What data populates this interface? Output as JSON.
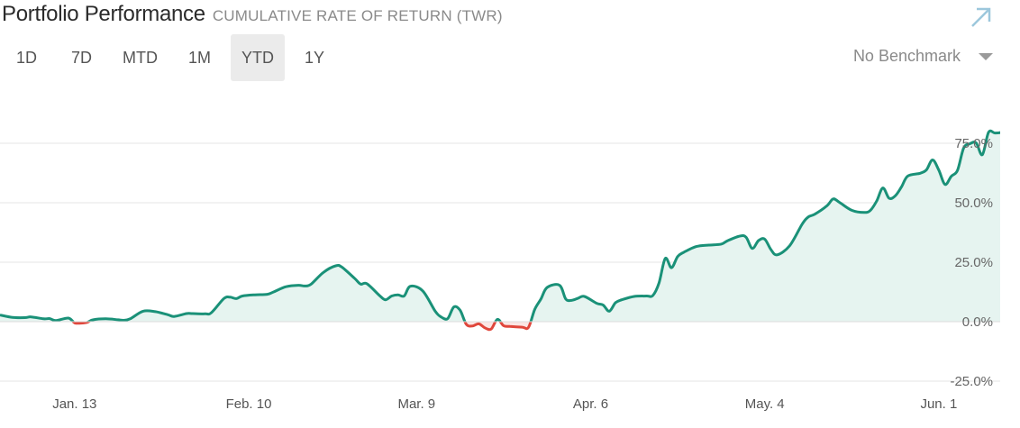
{
  "header": {
    "title": "Portfolio Performance",
    "subtitle": "CUMULATIVE RATE OF RETURN (TWR)"
  },
  "tabs": [
    {
      "label": "1D",
      "active": false
    },
    {
      "label": "7D",
      "active": false
    },
    {
      "label": "MTD",
      "active": false
    },
    {
      "label": "1M",
      "active": false
    },
    {
      "label": "YTD",
      "active": true
    },
    {
      "label": "1Y",
      "active": false
    }
  ],
  "benchmark": {
    "selected": "No Benchmark"
  },
  "icons": {
    "expand": "expand-arrow-icon",
    "dropdown": "chevron-down-icon"
  },
  "colors": {
    "positive": "#1a9178",
    "negative": "#e0473c",
    "fill": "#e6f4f0",
    "negative_fill": "#fbe6e4",
    "grid": "#e4e4e4"
  },
  "chart_data": {
    "type": "area",
    "title": "",
    "xlabel": "",
    "ylabel": "",
    "y_unit": "%",
    "ylim": [
      -25,
      85
    ],
    "y_ticks": [
      {
        "value": 75,
        "label": "75.0%"
      },
      {
        "value": 50,
        "label": "50.0%"
      },
      {
        "value": 25,
        "label": "25.0%"
      },
      {
        "value": 0,
        "label": "0.0%"
      },
      {
        "value": -25,
        "label": "-25.0%"
      }
    ],
    "xlim": [
      "2019-01-01",
      "2019-06-06"
    ],
    "x_ticks": [
      {
        "date": "2019-01-13",
        "label": "Jan. 13"
      },
      {
        "date": "2019-02-10",
        "label": "Feb. 10"
      },
      {
        "date": "2019-03-09",
        "label": "Mar. 9"
      },
      {
        "date": "2019-04-06",
        "label": "Apr. 6"
      },
      {
        "date": "2019-05-04",
        "label": "May. 4"
      },
      {
        "date": "2019-06-01",
        "label": "Jun. 1"
      }
    ],
    "grid": true,
    "legend": "none",
    "series": [
      {
        "points": [
          [
            "2019-01-01",
            2.8
          ],
          [
            "2019-01-03",
            1.8
          ],
          [
            "2019-01-05",
            1.7
          ],
          [
            "2019-01-06",
            2.0
          ],
          [
            "2019-01-08",
            1.2
          ],
          [
            "2019-01-09",
            1.3
          ],
          [
            "2019-01-10",
            0.5
          ],
          [
            "2019-01-12",
            1.5
          ],
          [
            "2019-01-13",
            -0.5
          ],
          [
            "2019-01-14",
            -0.6
          ],
          [
            "2019-01-15",
            -0.3
          ],
          [
            "2019-01-16",
            0.8
          ],
          [
            "2019-01-18",
            1.2
          ],
          [
            "2019-01-20",
            0.8
          ],
          [
            "2019-01-21",
            0.6
          ],
          [
            "2019-01-22",
            1.3
          ],
          [
            "2019-01-24",
            4.4
          ],
          [
            "2019-01-26",
            4.2
          ],
          [
            "2019-01-28",
            2.9
          ],
          [
            "2019-01-29",
            2.2
          ],
          [
            "2019-01-31",
            3.4
          ],
          [
            "2019-02-01",
            3.4
          ],
          [
            "2019-02-03",
            3.3
          ],
          [
            "2019-02-04",
            3.8
          ],
          [
            "2019-02-06",
            9.7
          ],
          [
            "2019-02-07",
            10.3
          ],
          [
            "2019-02-08",
            9.7
          ],
          [
            "2019-02-09",
            10.8
          ],
          [
            "2019-02-11",
            11.3
          ],
          [
            "2019-02-13",
            11.5
          ],
          [
            "2019-02-14",
            12.5
          ],
          [
            "2019-02-16",
            14.7
          ],
          [
            "2019-02-18",
            15.3
          ],
          [
            "2019-02-19",
            15.0
          ],
          [
            "2019-02-20",
            15.7
          ],
          [
            "2019-02-22",
            20.7
          ],
          [
            "2019-02-24",
            23.5
          ],
          [
            "2019-02-25",
            22.9
          ],
          [
            "2019-02-27",
            18.3
          ],
          [
            "2019-02-28",
            15.8
          ],
          [
            "2019-03-01",
            16.0
          ],
          [
            "2019-03-03",
            11.1
          ],
          [
            "2019-03-04",
            9.2
          ],
          [
            "2019-03-05",
            10.8
          ],
          [
            "2019-03-06",
            11.3
          ],
          [
            "2019-03-07",
            10.8
          ],
          [
            "2019-03-08",
            14.9
          ],
          [
            "2019-03-10",
            12.9
          ],
          [
            "2019-03-12",
            4.4
          ],
          [
            "2019-03-13",
            1.9
          ],
          [
            "2019-03-14",
            1.3
          ],
          [
            "2019-03-15",
            6.2
          ],
          [
            "2019-03-16",
            4.8
          ],
          [
            "2019-03-17",
            -1.1
          ],
          [
            "2019-03-18",
            -1.8
          ],
          [
            "2019-03-19",
            -0.9
          ],
          [
            "2019-03-20",
            -2.6
          ],
          [
            "2019-03-21",
            -3.1
          ],
          [
            "2019-03-22",
            1.0
          ],
          [
            "2019-03-23",
            -1.7
          ],
          [
            "2019-03-24",
            -2.0
          ],
          [
            "2019-03-26",
            -2.3
          ],
          [
            "2019-03-27",
            -2.4
          ],
          [
            "2019-03-28",
            5.1
          ],
          [
            "2019-03-29",
            9.5
          ],
          [
            "2019-03-30",
            14.4
          ],
          [
            "2019-04-01",
            15.3
          ],
          [
            "2019-04-02",
            9.5
          ],
          [
            "2019-04-03",
            9.0
          ],
          [
            "2019-04-04",
            9.9
          ],
          [
            "2019-04-05",
            10.6
          ],
          [
            "2019-04-07",
            7.7
          ],
          [
            "2019-04-08",
            7.0
          ],
          [
            "2019-04-09",
            4.4
          ],
          [
            "2019-04-10",
            8.0
          ],
          [
            "2019-04-11",
            9.2
          ],
          [
            "2019-04-13",
            10.6
          ],
          [
            "2019-04-15",
            10.8
          ],
          [
            "2019-04-16",
            11.0
          ],
          [
            "2019-04-17",
            16.3
          ],
          [
            "2019-04-18",
            26.6
          ],
          [
            "2019-04-19",
            22.7
          ],
          [
            "2019-04-20",
            27.4
          ],
          [
            "2019-04-21",
            29.2
          ],
          [
            "2019-04-23",
            31.6
          ],
          [
            "2019-04-25",
            32.2
          ],
          [
            "2019-04-27",
            32.6
          ],
          [
            "2019-04-28",
            34.0
          ],
          [
            "2019-04-30",
            36.0
          ],
          [
            "2019-05-01",
            35.5
          ],
          [
            "2019-05-02",
            30.8
          ],
          [
            "2019-05-03",
            34.1
          ],
          [
            "2019-05-04",
            34.7
          ],
          [
            "2019-05-05",
            30.3
          ],
          [
            "2019-05-06",
            28.1
          ],
          [
            "2019-05-08",
            31.9
          ],
          [
            "2019-05-10",
            40.9
          ],
          [
            "2019-05-11",
            44.0
          ],
          [
            "2019-05-12",
            45.1
          ],
          [
            "2019-05-14",
            48.7
          ],
          [
            "2019-05-15",
            51.6
          ],
          [
            "2019-05-16",
            50.2
          ],
          [
            "2019-05-18",
            46.8
          ],
          [
            "2019-05-20",
            45.9
          ],
          [
            "2019-05-21",
            46.8
          ],
          [
            "2019-05-22",
            50.7
          ],
          [
            "2019-05-23",
            56.2
          ],
          [
            "2019-05-24",
            51.9
          ],
          [
            "2019-05-25",
            52.9
          ],
          [
            "2019-05-26",
            56.7
          ],
          [
            "2019-05-27",
            61.2
          ],
          [
            "2019-05-29",
            62.4
          ],
          [
            "2019-05-30",
            63.8
          ],
          [
            "2019-05-31",
            68.0
          ],
          [
            "2019-06-01",
            63.7
          ],
          [
            "2019-06-02",
            57.7
          ],
          [
            "2019-06-03",
            61.1
          ],
          [
            "2019-06-04",
            63.6
          ],
          [
            "2019-06-05",
            73.0
          ],
          [
            "2019-06-06",
            74.8
          ],
          [
            "2019-06-07",
            75.2
          ],
          [
            "2019-06-08",
            70.2
          ],
          [
            "2019-06-09",
            79.6
          ],
          [
            "2019-06-10",
            79.3
          ],
          [
            "2019-06-11",
            79.6
          ],
          [
            "2019-06-12",
            81.2
          ],
          [
            "2019-06-13",
            84.1
          ],
          [
            "2019-06-14",
            79.0
          ]
        ]
      }
    ]
  }
}
